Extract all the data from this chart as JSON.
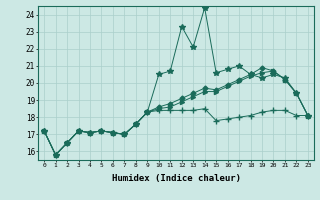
{
  "xlabel": "Humidex (Indice chaleur)",
  "bg_color": "#cce8e4",
  "grid_color": "#aacfcb",
  "line_color": "#1a6b5a",
  "xlim": [
    -0.5,
    23.5
  ],
  "ylim": [
    15.5,
    24.5
  ],
  "yticks": [
    16,
    17,
    18,
    19,
    20,
    21,
    22,
    23,
    24
  ],
  "xticks": [
    0,
    1,
    2,
    3,
    4,
    5,
    6,
    7,
    8,
    9,
    10,
    11,
    12,
    13,
    14,
    15,
    16,
    17,
    18,
    19,
    20,
    21,
    22,
    23
  ],
  "series": [
    [
      17.2,
      15.8,
      16.5,
      17.2,
      17.1,
      17.2,
      17.1,
      17.0,
      17.6,
      18.3,
      20.5,
      20.7,
      23.3,
      22.1,
      24.4,
      20.6,
      20.8,
      21.0,
      20.5,
      20.3,
      20.5,
      20.3,
      19.4,
      18.1
    ],
    [
      17.2,
      15.8,
      16.5,
      17.2,
      17.1,
      17.2,
      17.1,
      17.0,
      17.6,
      18.3,
      18.4,
      18.4,
      18.4,
      18.4,
      18.5,
      17.8,
      17.9,
      18.0,
      18.1,
      18.3,
      18.4,
      18.4,
      18.1,
      18.1
    ],
    [
      17.2,
      15.8,
      16.5,
      17.2,
      17.1,
      17.2,
      17.1,
      17.0,
      17.6,
      18.3,
      18.5,
      18.6,
      18.9,
      19.2,
      19.5,
      19.5,
      19.8,
      20.1,
      20.4,
      20.6,
      20.7,
      20.2,
      19.4,
      18.1
    ],
    [
      17.2,
      15.8,
      16.5,
      17.2,
      17.1,
      17.2,
      17.1,
      17.0,
      17.6,
      18.3,
      18.6,
      18.8,
      19.1,
      19.4,
      19.7,
      19.6,
      19.9,
      20.2,
      20.5,
      20.9,
      20.7,
      20.2,
      19.4,
      18.1
    ]
  ],
  "marker_styles": [
    "*",
    "+",
    ">",
    "D"
  ],
  "marker_sizes": [
    4,
    4,
    3,
    2.5
  ]
}
